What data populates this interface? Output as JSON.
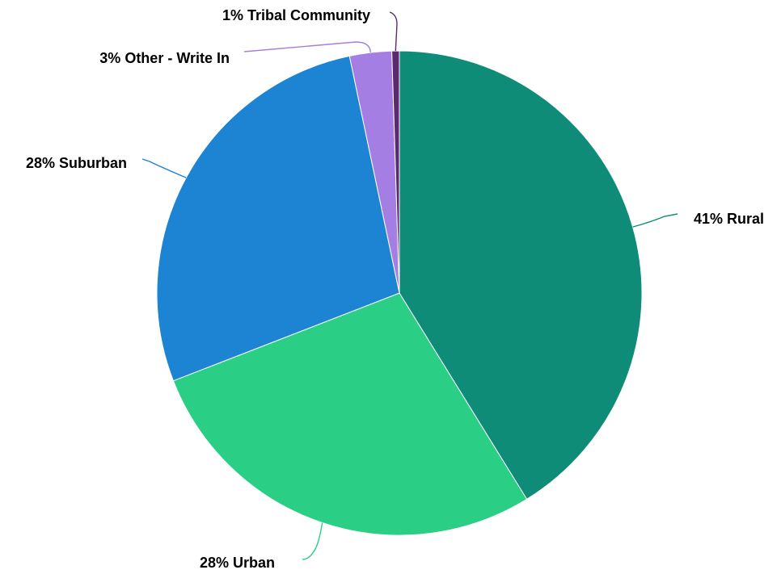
{
  "chart_data": {
    "type": "pie",
    "slices": [
      {
        "category": "Rural",
        "label": "41% Rural",
        "value": 41.2,
        "color": "#0e8c78"
      },
      {
        "category": "Urban",
        "label": "28% Urban",
        "value": 27.9,
        "color": "#2ace84"
      },
      {
        "category": "Suburban",
        "label": "28% Suburban",
        "value": 27.6,
        "color": "#1c84d2"
      },
      {
        "category": "Other - Write In",
        "label": "3% Other - Write In",
        "value": 2.8,
        "color": "#a57ee3"
      },
      {
        "category": "Tribal Community",
        "label": "1% Tribal Community",
        "value": 0.5,
        "color": "#5c2a6c"
      }
    ],
    "start_angle_deg": 0,
    "direction": "clockwise",
    "legend": "none"
  }
}
